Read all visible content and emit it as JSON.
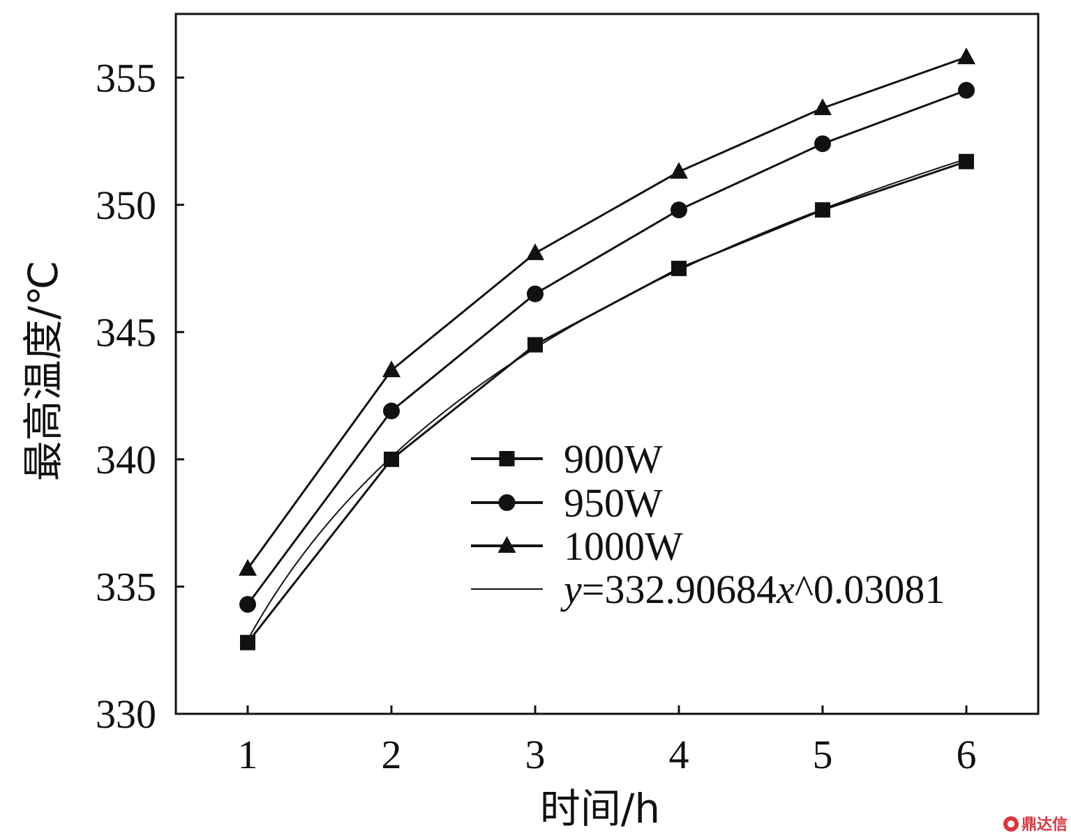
{
  "chart_data": {
    "type": "line",
    "xlabel": "时间/h",
    "ylabel": "最高温度/℃",
    "x": [
      1,
      2,
      3,
      4,
      5,
      6
    ],
    "xlim": [
      0.5,
      6.5
    ],
    "ylim": [
      330,
      357.5
    ],
    "xticks": [
      "1",
      "2",
      "3",
      "4",
      "5",
      "6"
    ],
    "yticks": [
      "330",
      "335",
      "340",
      "345",
      "350",
      "355"
    ],
    "grid": false,
    "legend_position": "center-right",
    "series": [
      {
        "name": "900W",
        "marker": "square",
        "values": [
          332.8,
          340.0,
          344.5,
          347.5,
          349.8,
          351.7
        ]
      },
      {
        "name": "950W",
        "marker": "circle",
        "values": [
          334.3,
          341.9,
          346.5,
          349.8,
          352.4,
          354.5
        ]
      },
      {
        "name": "1000W",
        "marker": "triangle",
        "values": [
          335.7,
          343.5,
          348.1,
          351.3,
          353.8,
          355.8
        ]
      },
      {
        "name": "y=332.90684x^0.03081",
        "marker": "none",
        "fit": {
          "a": 332.90684,
          "b": 0.03081
        }
      }
    ],
    "legend": {
      "items": [
        "900W",
        "950W",
        "1000W"
      ],
      "fit_label_y": "y",
      "fit_label_mid": "=332.90684",
      "fit_label_x": "x",
      "fit_label_tail": "^0.03081"
    }
  },
  "watermark": {
    "icon": "logo-icon",
    "text": "鼎达信"
  },
  "colors": {
    "line": "#111111",
    "watermark": "#d9363e"
  }
}
